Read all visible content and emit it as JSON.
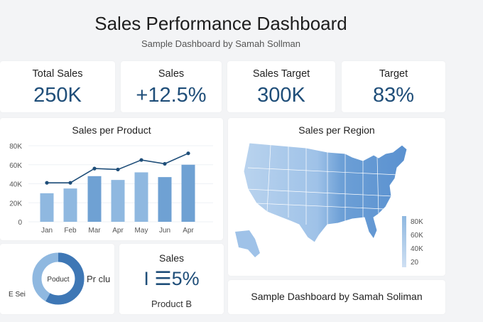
{
  "header": {
    "title": "Sales Performance Dashboard",
    "subtitle": "Sample Dashboard by Samah Sollman"
  },
  "kpis": [
    {
      "label": "Total Sales",
      "value": "250K"
    },
    {
      "label": "Sales",
      "value": "+12.5%"
    },
    {
      "label": "Sales Target",
      "value": "300K"
    },
    {
      "label": "Target",
      "value": "83%"
    }
  ],
  "colors": {
    "accent": "#1f4e79",
    "bar_light": "#8fb8e0",
    "bar_dark": "#6fa1d3",
    "line": "#1f4e79"
  },
  "chart_data": [
    {
      "type": "bar",
      "title": "Sales per Product",
      "categories": [
        "Jan",
        "Feb",
        "Mar",
        "Apr",
        "May",
        "Jun",
        "Apr"
      ],
      "series": [
        {
          "type": "bar",
          "values": [
            30,
            35,
            48,
            44,
            52,
            47,
            60
          ]
        },
        {
          "type": "line",
          "values": [
            41,
            41,
            56,
            55,
            65,
            61,
            72
          ]
        }
      ],
      "yticks": [
        "0",
        "20K",
        "40K",
        "60K",
        "80K"
      ],
      "ylim": [
        0,
        80
      ],
      "grid": true
    },
    {
      "type": "pie",
      "title": "",
      "center_label": "Poduct",
      "labels": [
        "Pr clu",
        "E Sei"
      ],
      "values": [
        58,
        42
      ]
    }
  ],
  "map": {
    "title": "Sales per Region",
    "legend": [
      "80K",
      "60K",
      "40K",
      "20"
    ]
  },
  "sales_card": {
    "title": "Sales",
    "value": "I ☰5%",
    "sub": "Product B"
  },
  "footer": {
    "text": "Sample Dashboard by Samah Soliman"
  }
}
